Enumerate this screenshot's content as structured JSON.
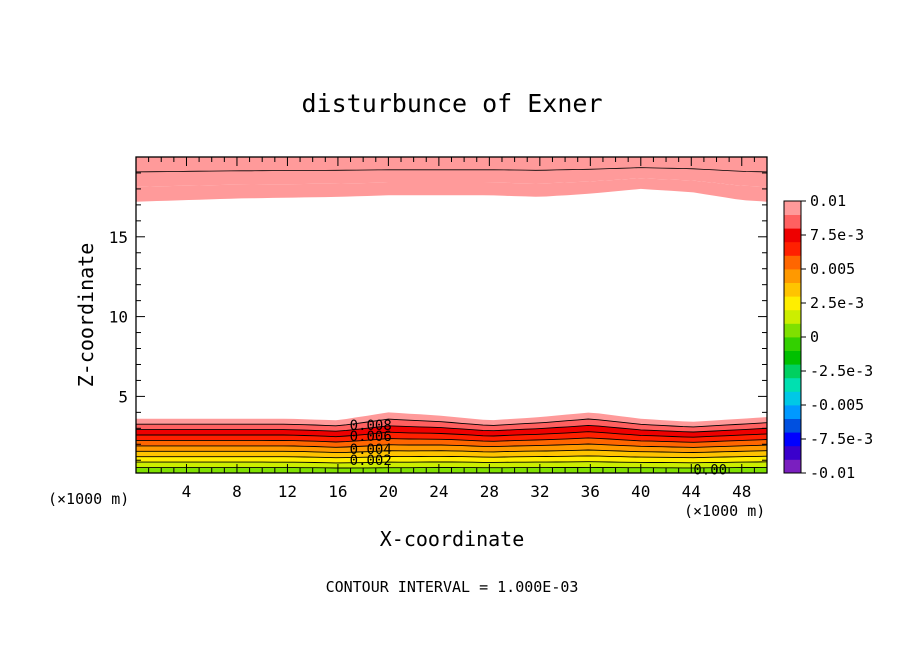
{
  "chart_data": {
    "type": "heatmap",
    "title": "disturbunce of Exner",
    "xlabel": "X-coordinate",
    "ylabel": "Z-coordinate",
    "x_unit_left": "(×1000 m)",
    "x_unit_right": "(×1000 m)",
    "xlim": [
      0,
      50
    ],
    "ylim": [
      0.2,
      20
    ],
    "x_ticks": [
      4,
      8,
      12,
      16,
      20,
      24,
      28,
      32,
      36,
      40,
      44,
      48
    ],
    "y_ticks": [
      5,
      10,
      15
    ],
    "footer": "CONTOUR INTERVAL = 1.000E-03",
    "contour_labels": [
      {
        "text": "0.008",
        "x": 18.6,
        "z": 2.9
      },
      {
        "text": "0.006",
        "x": 18.6,
        "z": 2.2
      },
      {
        "text": "0.004",
        "x": 18.6,
        "z": 1.4
      },
      {
        "text": "0.002",
        "x": 18.6,
        "z": 0.7
      },
      {
        "text": "0.00",
        "x": 45.5,
        "z": 0.1
      }
    ],
    "colorbar": {
      "labels": [
        "0.01",
        "7.5e-3",
        "0.005",
        "2.5e-3",
        "0",
        "-2.5e-3",
        "-0.005",
        "-7.5e-3",
        "-0.01"
      ],
      "range": [
        -0.01,
        0.01
      ],
      "colors": [
        "#7a1fbf",
        "#3a00cc",
        "#0000ff",
        "#0050e0",
        "#0099ff",
        "#00c8e6",
        "#00e0b0",
        "#00d060",
        "#00c000",
        "#33d000",
        "#7fe000",
        "#ccee00",
        "#ffee00",
        "#ffc400",
        "#ff9900",
        "#ff6600",
        "#ff2000",
        "#ee0000",
        "#ff6060",
        "#ff9a9a"
      ]
    },
    "lower_layer": {
      "top_height_profile": {
        "x": [
          0,
          4,
          8,
          12,
          16,
          20,
          24,
          28,
          32,
          36,
          40,
          44,
          48,
          50
        ],
        "z": [
          3.6,
          3.6,
          3.6,
          3.6,
          3.5,
          4.0,
          3.8,
          3.5,
          3.7,
          4.0,
          3.6,
          3.4,
          3.6,
          3.7
        ]
      },
      "field_range": [
        0.0,
        0.0095
      ]
    },
    "upper_layer": {
      "bottom_height_profile": {
        "x": [
          0,
          8,
          16,
          20,
          28,
          32,
          36,
          40,
          44,
          48,
          50
        ],
        "z": [
          17.2,
          17.4,
          17.5,
          17.6,
          17.6,
          17.5,
          17.7,
          18.0,
          17.8,
          17.3,
          17.2
        ]
      },
      "field_range": [
        0.0097,
        0.0102
      ]
    }
  }
}
